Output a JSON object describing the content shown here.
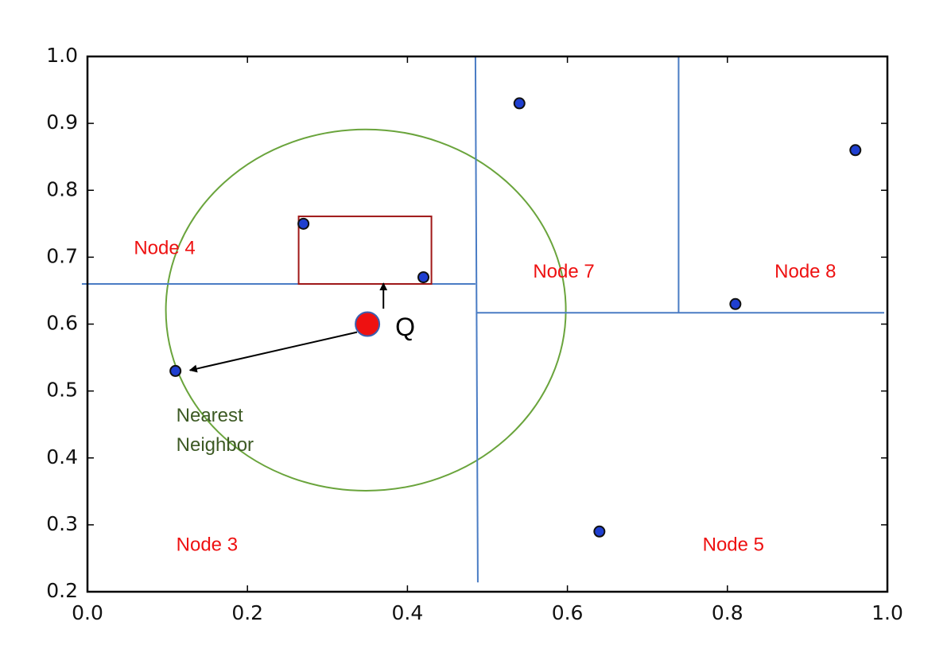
{
  "chart_data": {
    "type": "scatter",
    "x": [
      0.11,
      0.27,
      0.42,
      0.54,
      0.64,
      0.81,
      0.96
    ],
    "values": [
      0.53,
      0.75,
      0.67,
      0.93,
      0.29,
      0.63,
      0.86
    ],
    "color": "#1f3fd0",
    "query": {
      "x": 0.35,
      "y": 0.6,
      "label": "Q",
      "color": "#ee1111"
    },
    "xlim": [
      0,
      1
    ],
    "ylim": [
      0.2,
      1
    ],
    "xticks": [
      {
        "value": 0,
        "label": "0.0"
      },
      0.2,
      0.4,
      0.6,
      0.8,
      {
        "value": 1,
        "label": "1.0"
      }
    ],
    "yticks": [
      0.2,
      0.3,
      0.4,
      0.5,
      0.6,
      0.7,
      0.8,
      0.9,
      {
        "value": 1,
        "label": "1.0"
      }
    ],
    "splits": {
      "color": "#4a7cc4",
      "lines": [
        {
          "x1": 0.485,
          "y1": 1.0,
          "x2": 0.488,
          "y2": 0.214
        },
        {
          "x1": -0.007,
          "y1": 0.66,
          "x2": 0.485,
          "y2": 0.66
        },
        {
          "x1": 0.486,
          "y1": 0.617,
          "x2": 0.996,
          "y2": 0.617
        },
        {
          "x1": 0.739,
          "y1": 1.0,
          "x2": 0.739,
          "y2": 0.617
        }
      ]
    },
    "box": {
      "x0": 0.264,
      "x1": 0.43,
      "y0": 0.66,
      "y1": 0.761,
      "color": "#a01818"
    },
    "circle": {
      "cx": 0.348,
      "cy": 0.621,
      "rx": 0.25,
      "ry": 0.27,
      "color": "#6aa43c"
    },
    "arrows": [
      {
        "x1": 0.337,
        "y1": 0.588,
        "x2": 0.128,
        "y2": 0.531
      },
      {
        "x1": 0.37,
        "y1": 0.623,
        "x2": 0.37,
        "y2": 0.661
      }
    ],
    "annotations": [
      {
        "text": "Node 4",
        "x": 0.058,
        "y": 0.712,
        "color": "#ee1111"
      },
      {
        "text": "Node 7",
        "x": 0.557,
        "y": 0.677,
        "color": "#ee1111"
      },
      {
        "text": "Node 8",
        "x": 0.859,
        "y": 0.677,
        "color": "#ee1111"
      },
      {
        "text": "Node 3",
        "x": 0.111,
        "y": 0.269,
        "color": "#ee1111"
      },
      {
        "text": "Node 5",
        "x": 0.769,
        "y": 0.269,
        "color": "#ee1111"
      },
      {
        "text": "Nearest",
        "x": 0.111,
        "y": 0.462,
        "color": "#3d5a24"
      },
      {
        "text": "Neighbor",
        "x": 0.111,
        "y": 0.418,
        "color": "#3d5a24"
      }
    ]
  }
}
